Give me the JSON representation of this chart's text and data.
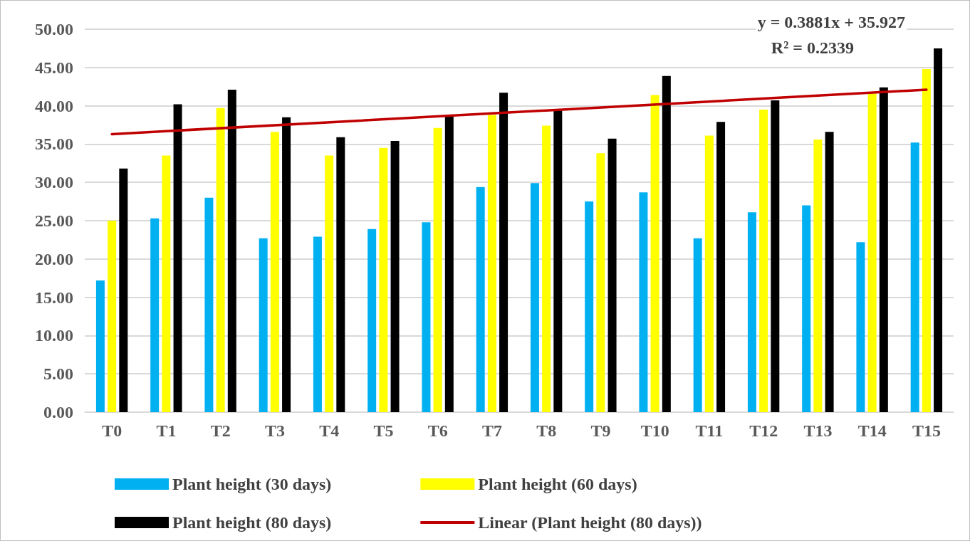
{
  "chart_data": {
    "type": "bar",
    "categories": [
      "T0",
      "T1",
      "T2",
      "T3",
      "T4",
      "T5",
      "T6",
      "T7",
      "T8",
      "T9",
      "T10",
      "T11",
      "T12",
      "T13",
      "T14",
      "T15"
    ],
    "series": [
      {
        "name": "Plant height (30 days)",
        "color": "#00b0f0",
        "values": [
          17.2,
          25.3,
          28.0,
          22.7,
          22.9,
          23.9,
          24.8,
          29.4,
          29.9,
          27.5,
          28.7,
          22.7,
          26.1,
          27.0,
          22.2,
          35.2
        ]
      },
      {
        "name": "Plant height (60 days)",
        "color": "#ffff00",
        "values": [
          25.0,
          33.5,
          39.7,
          36.6,
          33.5,
          34.5,
          37.1,
          38.8,
          37.4,
          33.8,
          41.4,
          36.1,
          39.5,
          35.6,
          41.6,
          44.8
        ]
      },
      {
        "name": "Plant height (80 days)",
        "color": "#000000",
        "values": [
          31.8,
          40.2,
          42.1,
          38.5,
          35.9,
          35.4,
          38.6,
          41.7,
          39.4,
          35.7,
          43.9,
          37.9,
          40.7,
          36.6,
          42.4,
          47.5
        ]
      },
      {
        "name": "Linear (Plant height (80 days))",
        "type": "line",
        "color": "#c00000",
        "x": [
          "T0",
          "T15"
        ],
        "values": [
          36.3,
          42.1
        ]
      }
    ],
    "ylim": [
      0,
      50
    ],
    "yticks": [
      {
        "value": 0,
        "label": "0.00"
      },
      {
        "value": 5,
        "label": "5.00"
      },
      {
        "value": 10,
        "label": "10.00"
      },
      {
        "value": 15,
        "label": "15.00"
      },
      {
        "value": 20,
        "label": "20.00"
      },
      {
        "value": 25,
        "label": "25.00"
      },
      {
        "value": 30,
        "label": "30.00"
      },
      {
        "value": 35,
        "label": "35.00"
      },
      {
        "value": 40,
        "label": "40.00"
      },
      {
        "value": 45,
        "label": "45.00"
      },
      {
        "value": 50,
        "label": "50.00"
      }
    ],
    "grid": "y",
    "legend": "bottom",
    "marker": "none",
    "annotations": [
      "y = 0.3881x + 35.927",
      "R² = 0.2339"
    ]
  }
}
